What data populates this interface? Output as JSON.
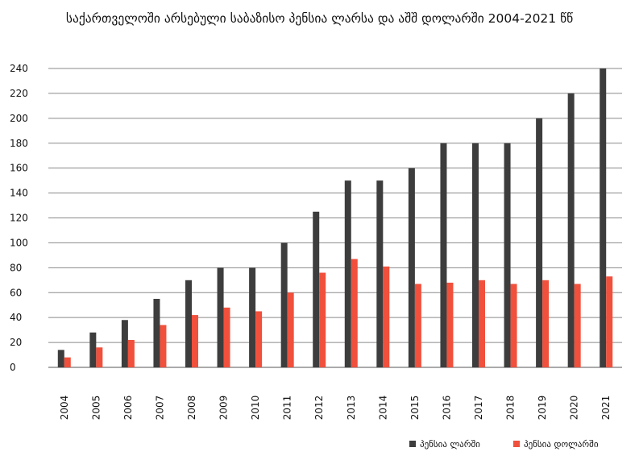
{
  "chart_data": {
    "type": "bar",
    "title": "საქართველოში არსებული საბაზისო პენსია ლარსა და აშშ დოლარში 2004-2021 წწ",
    "xlabel": "",
    "ylabel": "",
    "categories": [
      "2004",
      "2005",
      "2006",
      "2007",
      "2008",
      "2009",
      "2010",
      "2011",
      "2012",
      "2013",
      "2014",
      "2015",
      "2016",
      "2017",
      "2018",
      "2019",
      "2020",
      "2021"
    ],
    "series": [
      {
        "name": "პენსია ლარში",
        "color": "#3d3d3d",
        "values": [
          14,
          28,
          38,
          55,
          70,
          80,
          80,
          100,
          125,
          150,
          150,
          160,
          180,
          180,
          180,
          200,
          220,
          240
        ]
      },
      {
        "name": "პენსია დოლარში",
        "color": "#f0503c",
        "values": [
          8,
          16,
          22,
          34,
          42,
          48,
          45,
          60,
          76,
          87,
          81,
          67,
          68,
          70,
          67,
          70,
          67,
          73
        ]
      }
    ],
    "ylim": [
      0,
      240
    ],
    "yticks": [
      0,
      20,
      40,
      60,
      80,
      100,
      120,
      140,
      160,
      180,
      200,
      220,
      240
    ],
    "grid": true,
    "legend_position": "bottom-right"
  }
}
